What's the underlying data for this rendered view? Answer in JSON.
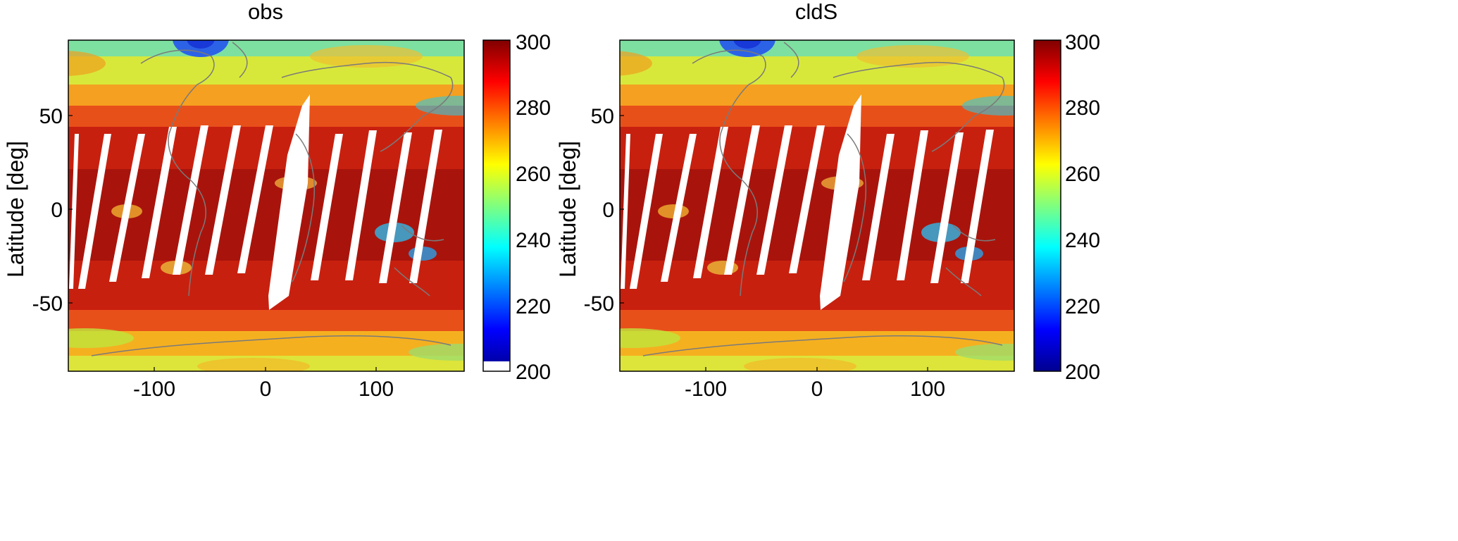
{
  "chart_data": [
    {
      "type": "heatmap",
      "title": "obs",
      "xlabel": "",
      "ylabel": "Latitude [deg]",
      "xlim": [
        -180,
        180
      ],
      "ylim": [
        -90,
        90
      ],
      "x_ticks": [
        -100,
        0,
        100
      ],
      "y_ticks": [
        50,
        0,
        -50
      ],
      "x_tick_labels": [
        "-100",
        "0",
        "100"
      ],
      "y_tick_labels": [
        "50",
        "0",
        "-50"
      ],
      "colorbar": {
        "range": [
          200,
          300
        ],
        "ticks": [
          300,
          280,
          260,
          240,
          220,
          200
        ],
        "tick_labels": [
          "300",
          "280",
          "260",
          "240",
          "220",
          "200"
        ],
        "colormap": "jet",
        "bottom_segment_white": true
      },
      "missing_data_swaths": true
    },
    {
      "type": "heatmap",
      "title": "cldS",
      "xlabel": "",
      "ylabel": "Latitude [deg]",
      "xlim": [
        -180,
        180
      ],
      "ylim": [
        -90,
        90
      ],
      "x_ticks": [
        -100,
        0,
        100
      ],
      "y_ticks": [
        50,
        0,
        -50
      ],
      "x_tick_labels": [
        "-100",
        "0",
        "100"
      ],
      "y_tick_labels": [
        "50",
        "0",
        "-50"
      ],
      "colorbar": {
        "range": [
          200,
          300
        ],
        "ticks": [
          300,
          280,
          260,
          240,
          220,
          200
        ],
        "tick_labels": [
          "300",
          "280",
          "260",
          "240",
          "220",
          "200"
        ],
        "colormap": "jet",
        "bottom_segment_white": false
      },
      "missing_data_swaths": true
    }
  ]
}
